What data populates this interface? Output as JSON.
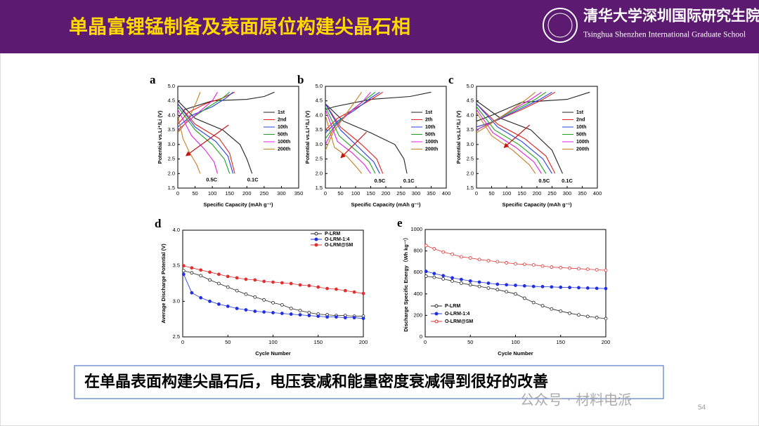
{
  "header": {
    "title": "单晶富锂锰制备及表面原位构建尖晶石相",
    "school_cn": "清华大学深圳国际研究生院",
    "school_en": "Tsinghua Shenzhen International Graduate School"
  },
  "caption": "在单晶表面构建尖晶石后，电压衰减和能量密度衰减得到很好的改善",
  "watermark": "公众号 · 材料电派",
  "page_number": "54",
  "chart_data": [
    {
      "type": "line",
      "label": "a",
      "x_label": "Specific Capacity (mAh g⁻¹)",
      "y_label": "Potential vs.Li⁺/Li (V)",
      "xlim": [
        0,
        350
      ],
      "ylim": [
        1.5,
        5.0
      ],
      "xticks": [
        0,
        50,
        100,
        150,
        200,
        250,
        300,
        350
      ],
      "yticks": [
        1.5,
        {
          "value": 2,
          "label": "2.0"
        },
        2.5,
        {
          "value": 3,
          "label": "3.0"
        },
        3.5,
        {
          "value": 4,
          "label": "4.0"
        },
        4.5,
        {
          "value": 5,
          "label": "5.0"
        }
      ],
      "legend": "center right",
      "annotations": [
        "0.5C",
        "0.1C"
      ],
      "series": [
        {
          "name": "1st",
          "color": "#222222",
          "x": [
            0,
            20,
            100,
            200,
            250,
            280,
            null,
            0,
            50,
            130,
            180,
            200,
            215
          ],
          "values": [
            3.9,
            4.2,
            4.5,
            4.55,
            4.65,
            4.8,
            null,
            4.5,
            3.9,
            3.5,
            3.0,
            2.5,
            2.0
          ]
        },
        {
          "name": "2nd",
          "color": "#e02020",
          "x": [
            0,
            30,
            80,
            130,
            165,
            null,
            0,
            50,
            120,
            150,
            165
          ],
          "values": [
            3.7,
            4.1,
            4.4,
            4.6,
            4.8,
            null,
            4.4,
            3.7,
            3.2,
            2.7,
            2.0
          ]
        },
        {
          "name": "10th",
          "color": "#2040e0",
          "x": [
            0,
            40,
            100,
            140,
            160,
            null,
            0,
            50,
            110,
            145,
            160
          ],
          "values": [
            3.6,
            4.0,
            4.3,
            4.6,
            4.8,
            null,
            4.4,
            3.6,
            3.1,
            2.6,
            2.0
          ]
        },
        {
          "name": "50th",
          "color": "#20a020",
          "x": [
            0,
            40,
            90,
            130,
            150,
            null,
            0,
            50,
            100,
            135,
            150
          ],
          "values": [
            3.5,
            3.9,
            4.3,
            4.6,
            4.8,
            null,
            4.3,
            3.5,
            3.0,
            2.5,
            2.0
          ]
        },
        {
          "name": "100th",
          "color": "#e020e0",
          "x": [
            0,
            30,
            70,
            100,
            115,
            null,
            0,
            40,
            80,
            105,
            115
          ],
          "values": [
            3.5,
            3.8,
            4.2,
            4.5,
            4.8,
            null,
            4.2,
            3.3,
            2.8,
            2.4,
            2.0
          ]
        },
        {
          "name": "200th",
          "color": "#c08020",
          "x": [
            0,
            20,
            40,
            55,
            65,
            null,
            0,
            15,
            35,
            55,
            65
          ],
          "values": [
            3.4,
            3.7,
            4.1,
            4.5,
            4.8,
            null,
            4.0,
            3.2,
            2.7,
            2.3,
            2.0
          ]
        }
      ]
    },
    {
      "type": "line",
      "label": "b",
      "x_label": "Specific Capacity (mAh g⁻¹)",
      "y_label": "Potential vs.Li⁺/Li (V)",
      "xlim": [
        0,
        400
      ],
      "ylim": [
        1.5,
        5.0
      ],
      "xticks": [
        0,
        50,
        100,
        150,
        200,
        250,
        300,
        350,
        400
      ],
      "yticks": [
        1.5,
        {
          "value": 2,
          "label": "2.0"
        },
        2.5,
        {
          "value": 3,
          "label": "3.0"
        },
        3.5,
        {
          "value": 4,
          "label": "4.0"
        },
        4.5,
        {
          "value": 5,
          "label": "5.0"
        }
      ],
      "legend": "center right",
      "annotations": [
        "0.5C",
        "0.1C"
      ],
      "series": [
        {
          "name": "1st",
          "color": "#222222",
          "x": [
            0,
            30,
            150,
            280,
            350,
            null,
            0,
            60,
            150,
            230,
            260,
            270
          ],
          "values": [
            4.2,
            4.3,
            4.55,
            4.65,
            4.8,
            null,
            4.4,
            3.8,
            3.4,
            3.0,
            2.5,
            2.0
          ]
        },
        {
          "name": "2th",
          "color": "#e02020",
          "x": [
            0,
            40,
            110,
            160,
            190,
            null,
            0,
            50,
            120,
            170,
            190
          ],
          "values": [
            3.5,
            3.9,
            4.3,
            4.6,
            4.8,
            null,
            4.4,
            3.6,
            3.0,
            2.5,
            2.0
          ]
        },
        {
          "name": "10th",
          "color": "#2040e0",
          "x": [
            0,
            40,
            100,
            150,
            180,
            null,
            0,
            50,
            110,
            160,
            180
          ],
          "values": [
            3.4,
            3.8,
            4.2,
            4.6,
            4.8,
            null,
            4.4,
            3.5,
            2.9,
            2.4,
            2.0
          ]
        },
        {
          "name": "50th",
          "color": "#20a020",
          "x": [
            0,
            35,
            90,
            140,
            165,
            null,
            0,
            45,
            100,
            145,
            165
          ],
          "values": [
            3.2,
            3.7,
            4.2,
            4.6,
            4.8,
            null,
            4.3,
            3.3,
            2.8,
            2.4,
            2.0
          ]
        },
        {
          "name": "100th",
          "color": "#e020e0",
          "x": [
            0,
            30,
            80,
            125,
            150,
            null,
            0,
            40,
            90,
            130,
            150
          ],
          "values": [
            3.0,
            3.6,
            4.1,
            4.5,
            4.8,
            null,
            4.2,
            3.1,
            2.7,
            2.3,
            2.0
          ]
        },
        {
          "name": "200th",
          "color": "#c08020",
          "x": [
            0,
            25,
            65,
            100,
            120,
            null,
            0,
            30,
            70,
            105,
            120
          ],
          "values": [
            2.8,
            3.4,
            4.0,
            4.5,
            4.8,
            null,
            4.0,
            2.9,
            2.6,
            2.2,
            2.0
          ]
        }
      ]
    },
    {
      "type": "line",
      "label": "c",
      "x_label": "Specific Capacity (mAh g⁻¹)",
      "y_label": "Potential vs.Li⁺/Li (V)",
      "xlim": [
        0,
        400
      ],
      "ylim": [
        1.5,
        5.0
      ],
      "xticks": [
        0,
        50,
        100,
        150,
        200,
        250,
        300,
        350,
        400
      ],
      "yticks": [
        1.5,
        {
          "value": 2,
          "label": "2.0"
        },
        2.5,
        {
          "value": 3,
          "label": "3.0"
        },
        3.5,
        {
          "value": 4,
          "label": "4.0"
        },
        4.5,
        {
          "value": 5,
          "label": "5.0"
        }
      ],
      "legend": "center right",
      "annotations": [
        "0.5C",
        "0.1C"
      ],
      "series": [
        {
          "name": "1st",
          "color": "#222222",
          "x": [
            0,
            50,
            150,
            300,
            375,
            null,
            0,
            80,
            180,
            250,
            285
          ],
          "values": [
            3.8,
            4.0,
            4.45,
            4.55,
            4.8,
            null,
            4.5,
            3.9,
            3.5,
            2.8,
            2.0
          ]
        },
        {
          "name": "2nd",
          "color": "#e02020",
          "x": [
            0,
            60,
            150,
            220,
            260,
            null,
            0,
            70,
            160,
            230,
            260
          ],
          "values": [
            3.6,
            3.8,
            4.2,
            4.55,
            4.8,
            null,
            4.4,
            3.7,
            3.2,
            2.6,
            2.0
          ]
        },
        {
          "name": "10th",
          "color": "#2040e0",
          "x": [
            0,
            60,
            140,
            210,
            250,
            null,
            0,
            70,
            150,
            220,
            250
          ],
          "values": [
            3.6,
            3.8,
            4.2,
            4.55,
            4.8,
            null,
            4.4,
            3.6,
            3.1,
            2.5,
            2.0
          ]
        },
        {
          "name": "50th",
          "color": "#20a020",
          "x": [
            0,
            55,
            130,
            195,
            230,
            null,
            0,
            60,
            140,
            200,
            230
          ],
          "values": [
            3.5,
            3.8,
            4.2,
            4.55,
            4.8,
            null,
            4.3,
            3.5,
            3.0,
            2.5,
            2.0
          ]
        },
        {
          "name": "100th",
          "color": "#e020e0",
          "x": [
            0,
            50,
            120,
            180,
            215,
            null,
            0,
            55,
            130,
            190,
            215
          ],
          "values": [
            3.5,
            3.75,
            4.2,
            4.55,
            4.8,
            null,
            4.2,
            3.4,
            2.9,
            2.4,
            2.0
          ]
        },
        {
          "name": "200th",
          "color": "#c08020",
          "x": [
            0,
            45,
            110,
            165,
            195,
            null,
            0,
            50,
            120,
            175,
            195
          ],
          "values": [
            3.4,
            3.7,
            4.15,
            4.55,
            4.8,
            null,
            4.1,
            3.3,
            2.8,
            2.3,
            2.0
          ]
        }
      ]
    },
    {
      "type": "line",
      "label": "d",
      "x_label": "Cycle Number",
      "y_label": "Average Discharge Potential (V)",
      "markers": true,
      "xlim": [
        0,
        200
      ],
      "ylim": [
        2.5,
        4.0
      ],
      "xticks": [
        0,
        50,
        100,
        150,
        200
      ],
      "yticks": [
        2.5,
        {
          "value": 3,
          "label": "3.0"
        },
        3.5,
        {
          "value": 4,
          "label": "4.0"
        }
      ],
      "legend": "upper right",
      "x": [
        1,
        10,
        20,
        30,
        40,
        50,
        60,
        70,
        80,
        90,
        100,
        110,
        120,
        130,
        140,
        150,
        160,
        170,
        180,
        190,
        200
      ],
      "series": [
        {
          "name": "P-LRM",
          "color": "#222222",
          "marker": "open",
          "values": [
            3.43,
            3.4,
            3.36,
            3.3,
            3.25,
            3.2,
            3.15,
            3.1,
            3.06,
            3.02,
            2.98,
            2.95,
            2.9,
            2.87,
            2.84,
            2.82,
            2.81,
            2.8,
            2.8,
            2.79,
            2.79
          ]
        },
        {
          "name": "O-LRM-1:4",
          "color": "#2030e0",
          "marker": "filled",
          "values": [
            3.38,
            3.12,
            3.05,
            3.0,
            2.96,
            2.93,
            2.9,
            2.88,
            2.86,
            2.85,
            2.84,
            2.83,
            2.82,
            2.81,
            2.8,
            2.79,
            2.78,
            2.78,
            2.77,
            2.77,
            2.76
          ]
        },
        {
          "name": "O-LRM@SM",
          "color": "#e03030",
          "marker": "filled",
          "values": [
            3.5,
            3.47,
            3.44,
            3.41,
            3.38,
            3.35,
            3.33,
            3.31,
            3.3,
            3.28,
            3.27,
            3.26,
            3.25,
            3.23,
            3.22,
            3.2,
            3.18,
            3.17,
            3.15,
            3.13,
            3.11
          ]
        }
      ]
    },
    {
      "type": "line",
      "label": "e",
      "x_label": "Cycle Number",
      "y_label": "Discharge Specific Energy（Wh kg⁻¹）",
      "markers": true,
      "xlim": [
        0,
        200
      ],
      "ylim": [
        0,
        1000
      ],
      "xticks": [
        0,
        50,
        100,
        150,
        200
      ],
      "yticks": [
        0,
        200,
        400,
        600,
        800,
        1000
      ],
      "legend": "lower left",
      "x": [
        1,
        10,
        20,
        30,
        40,
        50,
        60,
        70,
        80,
        90,
        100,
        110,
        120,
        130,
        140,
        150,
        160,
        170,
        180,
        190,
        200
      ],
      "series": [
        {
          "name": "P-LRM",
          "color": "#222222",
          "marker": "open",
          "values": [
            565,
            555,
            540,
            520,
            500,
            485,
            470,
            455,
            440,
            420,
            400,
            360,
            320,
            290,
            260,
            240,
            220,
            205,
            190,
            180,
            170
          ]
        },
        {
          "name": "O-LRM-1:4",
          "color": "#2030e0",
          "marker": "filled",
          "values": [
            610,
            590,
            570,
            550,
            535,
            520,
            510,
            500,
            490,
            485,
            480,
            475,
            470,
            468,
            465,
            462,
            460,
            458,
            455,
            452,
            450
          ]
        },
        {
          "name": "O-LRM@SM",
          "color": "#e03030",
          "marker": "open",
          "values": [
            850,
            820,
            790,
            770,
            745,
            735,
            720,
            710,
            700,
            690,
            680,
            675,
            670,
            660,
            650,
            645,
            640,
            635,
            630,
            625,
            620
          ]
        }
      ]
    }
  ]
}
